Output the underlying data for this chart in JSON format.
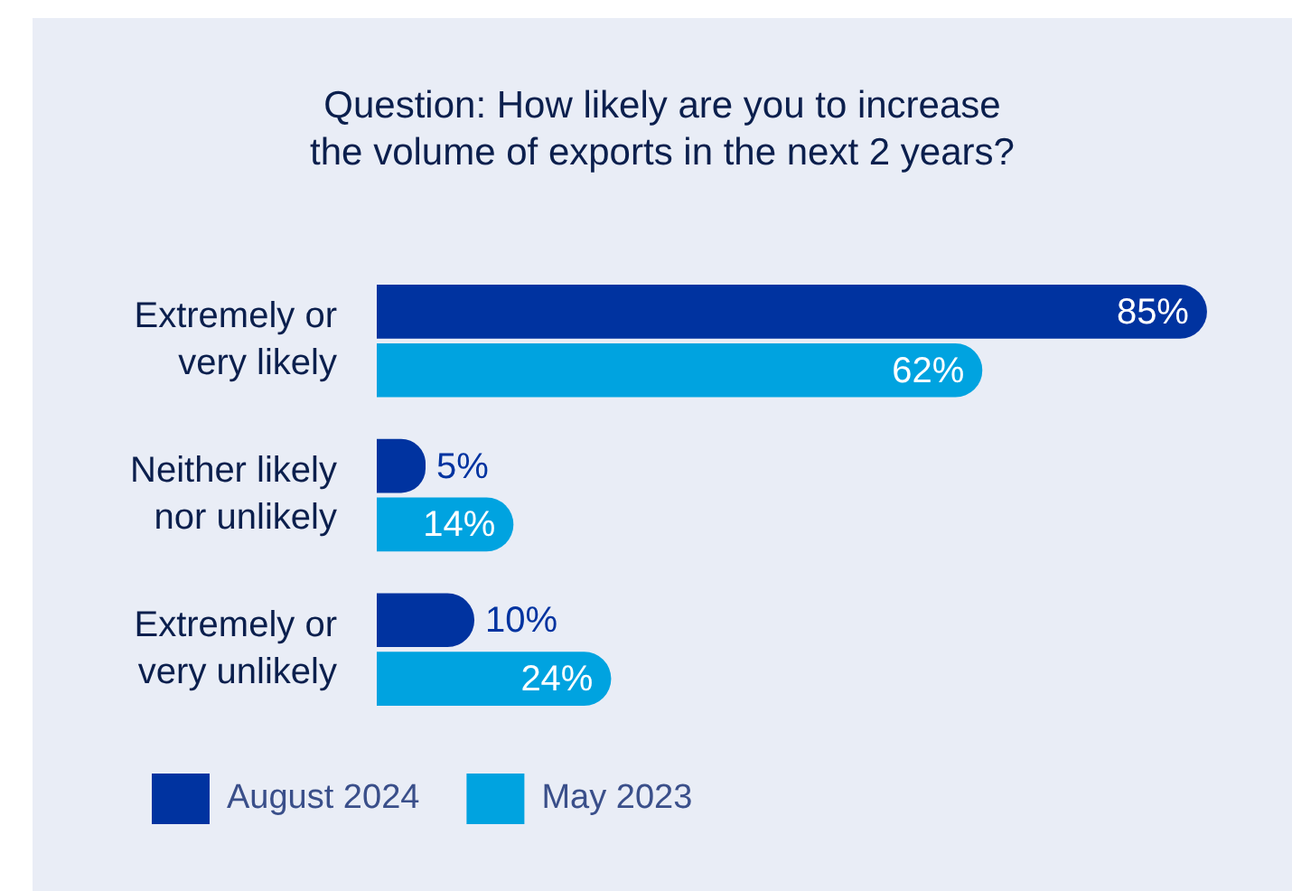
{
  "chart_data": {
    "type": "bar",
    "orientation": "horizontal",
    "title": "Question: How likely are you to increase the volume of exports in the next 2 years?",
    "categories": [
      "Extremely or very likely",
      "Neither likely nor unlikely",
      "Extremely or very unlikely"
    ],
    "series": [
      {
        "name": "August 2024",
        "color": "#0033a0",
        "values": [
          85,
          5,
          10
        ],
        "value_labels": [
          "85%",
          "5%",
          "10%"
        ]
      },
      {
        "name": "May 2023",
        "color": "#00a3e0",
        "values": [
          62,
          14,
          24
        ],
        "value_labels": [
          "62%",
          "14%",
          "24%"
        ]
      }
    ],
    "legend": "bottom left",
    "grid": false
  }
}
